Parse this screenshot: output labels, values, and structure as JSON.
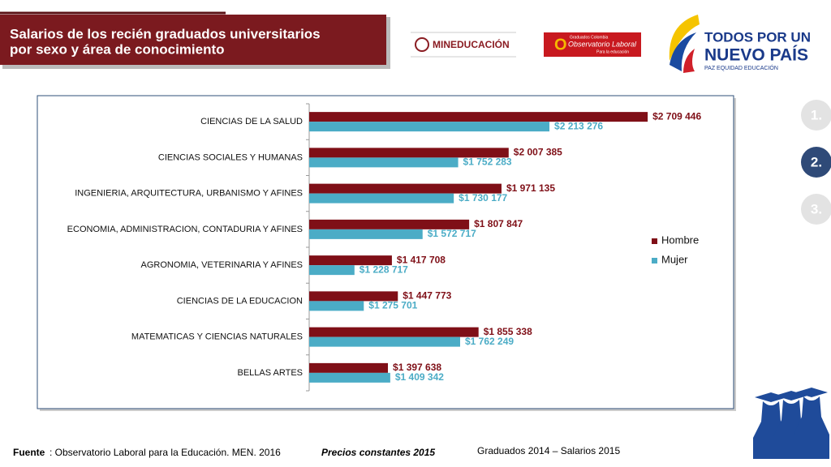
{
  "header": {
    "title_line1": "Salarios de los recién graduados universitarios",
    "title_line2": "por sexo y área de conocimiento",
    "logo_men": "MINEDUCACIÓN",
    "logo_obs_top": "Graduados Colombia",
    "logo_obs": "Observatorio Laboral",
    "logo_obs_sub": "Para la educación",
    "logo_gov_1": "TODOS POR UN",
    "logo_gov_2": "NUEVO PAÍS",
    "logo_gov_3": "PAZ   EQUIDAD   EDUCACIÓN"
  },
  "nav": [
    "1.",
    "2.",
    "3."
  ],
  "chart_data": {
    "type": "bar",
    "orientation": "horizontal",
    "categories": [
      "CIENCIAS DE LA SALUD",
      "CIENCIAS SOCIALES Y HUMANAS",
      "INGENIERIA, ARQUITECTURA, URBANISMO Y AFINES",
      "ECONOMIA, ADMINISTRACION, CONTADURIA Y AFINES",
      "AGRONOMIA, VETERINARIA Y AFINES",
      "CIENCIAS DE LA EDUCACION",
      "MATEMATICAS Y CIENCIAS NATURALES",
      "BELLAS ARTES"
    ],
    "series": [
      {
        "name": "Hombre",
        "color": "#7f0f17",
        "values": [
          2709446,
          2007385,
          1971135,
          1807847,
          1417708,
          1447773,
          1855338,
          1397638
        ],
        "value_labels": [
          "$2 709 446",
          "$2 007 385",
          "$1 971 135",
          "$1 807 847",
          "$1 417 708",
          "$1 447 773",
          "$1 855 338",
          "$1 397 638"
        ]
      },
      {
        "name": "Mujer",
        "color": "#4bacc6",
        "values": [
          2213276,
          1752283,
          1730177,
          1572717,
          1228717,
          1275701,
          1762249,
          1409342
        ],
        "value_labels": [
          "$2 213 276",
          "$1 752 283",
          "$1 730 177",
          "$1 572 717",
          "$1 228 717",
          "$1 275 701",
          "$1 762 249",
          "$1 409 342"
        ]
      }
    ],
    "xlim": [
      1000000,
      3000000
    ],
    "legend": "right"
  },
  "footer": {
    "source_label": "Fuente",
    "source": ": Observatorio Laboral para la Educación. MEN. 2016",
    "prices": "Precios constantes  2015",
    "period": "Graduados 2014 – Salarios 2015"
  }
}
